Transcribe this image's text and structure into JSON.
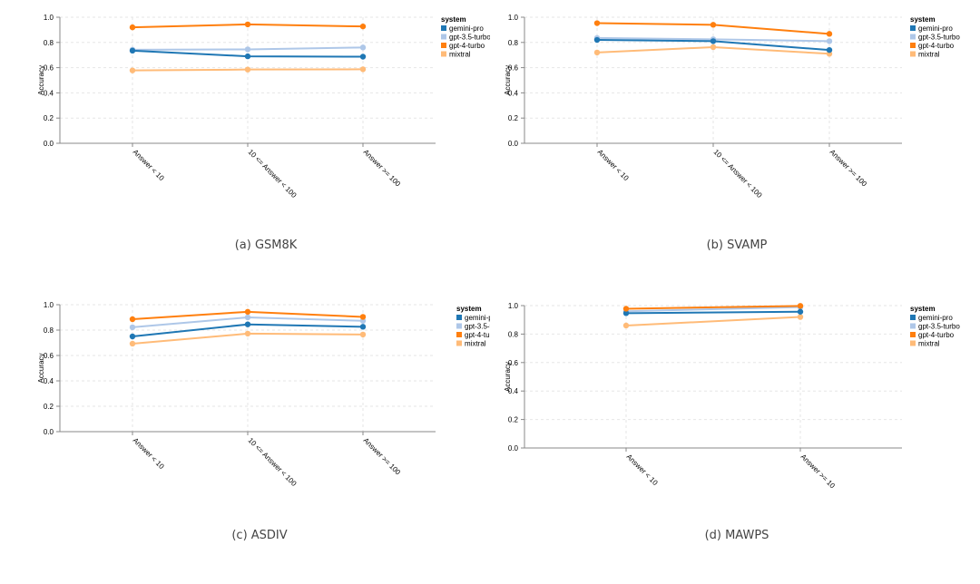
{
  "legend_title": "system",
  "colors": {
    "gemini-pro": "#1f77b4",
    "gpt-3.5-turbo": "#aec7e8",
    "gpt-4-turbo": "#ff7f0e",
    "mixtral": "#ffbb78"
  },
  "chart_data": [
    {
      "type": "line",
      "caption": "(a) GSM8K",
      "ylabel": "Accuracy",
      "ylim": [
        0,
        1
      ],
      "yticks": [
        "0.0",
        "0.2",
        "0.4",
        "0.6",
        "0.8",
        "1.0"
      ],
      "categories": [
        "Answer < 10",
        "10 <= Answer < 100",
        "Answer >= 100"
      ],
      "series": [
        {
          "name": "gemini-pro",
          "values": [
            0.735,
            0.69,
            0.687
          ]
        },
        {
          "name": "gpt-3.5-turbo",
          "values": [
            0.742,
            0.745,
            0.76
          ]
        },
        {
          "name": "gpt-4-turbo",
          "values": [
            0.92,
            0.943,
            0.927
          ]
        },
        {
          "name": "mixtral",
          "values": [
            0.578,
            0.585,
            0.587
          ]
        }
      ]
    },
    {
      "type": "line",
      "caption": "(b) SVAMP",
      "ylabel": "Accuracy",
      "ylim": [
        0,
        1
      ],
      "yticks": [
        "0.0",
        "0.2",
        "0.4",
        "0.6",
        "0.8",
        "1.0"
      ],
      "categories": [
        "Answer < 10",
        "10 <= Answer < 100",
        "Answer >= 100"
      ],
      "series": [
        {
          "name": "gemini-pro",
          "values": [
            0.82,
            0.81,
            0.74
          ]
        },
        {
          "name": "gpt-3.5-turbo",
          "values": [
            0.835,
            0.825,
            0.81
          ]
        },
        {
          "name": "gpt-4-turbo",
          "values": [
            0.953,
            0.94,
            0.868
          ]
        },
        {
          "name": "mixtral",
          "values": [
            0.72,
            0.763,
            0.71
          ]
        }
      ]
    },
    {
      "type": "line",
      "caption": "(c) ASDIV",
      "ylabel": "Accuracy",
      "ylim": [
        0,
        1
      ],
      "yticks": [
        "0.0",
        "0.2",
        "0.4",
        "0.6",
        "0.8",
        "1.0"
      ],
      "categories": [
        "Answer < 10",
        "10 <= Answer < 100",
        "Answer >= 100"
      ],
      "series": [
        {
          "name": "gemini-pro",
          "values": [
            0.75,
            0.845,
            0.826
          ]
        },
        {
          "name": "gpt-3.5-turbo",
          "values": [
            0.822,
            0.9,
            0.873
          ]
        },
        {
          "name": "gpt-4-turbo",
          "values": [
            0.886,
            0.944,
            0.904
          ]
        },
        {
          "name": "mixtral",
          "values": [
            0.693,
            0.772,
            0.765
          ]
        }
      ]
    },
    {
      "type": "line",
      "caption": "(d) MAWPS",
      "ylabel": "Accuracy",
      "ylim": [
        0,
        1
      ],
      "yticks": [
        "0.0",
        "0.2",
        "0.4",
        "0.6",
        "0.8",
        "1.0"
      ],
      "categories": [
        "Answer < 10",
        "Answer >= 10"
      ],
      "series": [
        {
          "name": "gemini-pro",
          "values": [
            0.947,
            0.957
          ]
        },
        {
          "name": "gpt-3.5-turbo",
          "values": [
            0.96,
            0.99
          ]
        },
        {
          "name": "gpt-4-turbo",
          "values": [
            0.978,
            0.998
          ]
        },
        {
          "name": "mixtral",
          "values": [
            0.86,
            0.92
          ]
        }
      ]
    }
  ]
}
